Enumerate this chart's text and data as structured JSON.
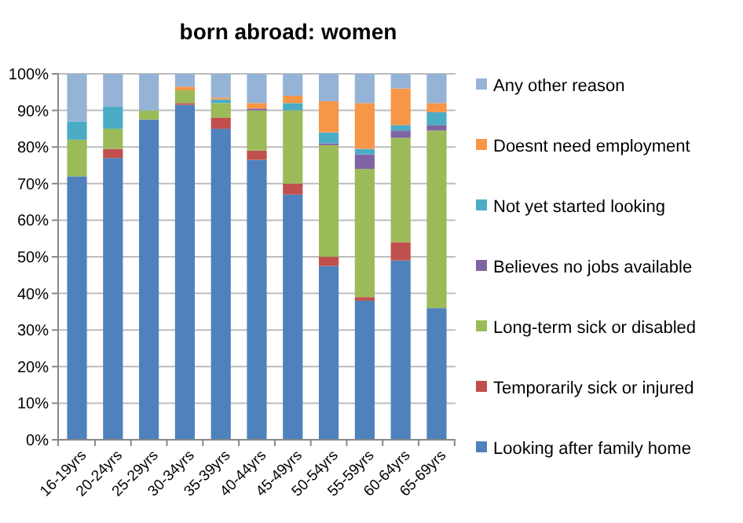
{
  "chart_data": {
    "type": "bar",
    "title": "born abroad: women",
    "stacked": true,
    "categories": [
      "16-19yrs",
      "20-24yrs",
      "25-29yrs",
      "30-34yrs",
      "35-39yrs",
      "40-44yrs",
      "45-49yrs",
      "50-54yrs",
      "55-59yrs",
      "60-64yrs",
      "65-69yrs"
    ],
    "series": [
      {
        "name": "Looking after family home",
        "color": "#4f81bd",
        "values": [
          72,
          77,
          87.5,
          91.5,
          85,
          76.5,
          67,
          47.5,
          38,
          49,
          36
        ]
      },
      {
        "name": "Temporarily sick or injured",
        "color": "#c0504d",
        "values": [
          0,
          2.5,
          0,
          0.5,
          3,
          2.5,
          3,
          2.5,
          1,
          5,
          0
        ]
      },
      {
        "name": "Long-term sick or disabled",
        "color": "#9bbb59",
        "values": [
          10,
          5.5,
          2.5,
          3.5,
          4,
          11,
          20,
          30.5,
          35,
          28.5,
          48.5
        ]
      },
      {
        "name": "Believes no jobs available",
        "color": "#8064a2",
        "values": [
          0,
          0,
          0,
          0,
          0,
          0.5,
          0,
          0.5,
          4,
          2,
          1.5
        ]
      },
      {
        "name": "Not yet started looking",
        "color": "#4bacc6",
        "values": [
          5,
          6,
          0,
          0,
          1,
          0,
          2,
          3,
          1.5,
          1.5,
          3.5
        ]
      },
      {
        "name": "Doesnt need employment",
        "color": "#f79646",
        "values": [
          0,
          0,
          0,
          1,
          0.5,
          1.5,
          2,
          8.5,
          12.5,
          10,
          2.5
        ]
      },
      {
        "name": "Any other reason",
        "color": "#95b3d7",
        "values": [
          13,
          9,
          10,
          3.5,
          6.5,
          8,
          6,
          7.5,
          8,
          4,
          8
        ]
      }
    ],
    "ylim": [
      0,
      100
    ],
    "yticks": [
      {
        "value": 0,
        "label": "0%"
      },
      {
        "value": 10,
        "label": "10%"
      },
      {
        "value": 20,
        "label": "20%"
      },
      {
        "value": 30,
        "label": "30%"
      },
      {
        "value": 40,
        "label": "40%"
      },
      {
        "value": 50,
        "label": "50%"
      },
      {
        "value": 60,
        "label": "60%"
      },
      {
        "value": 70,
        "label": "70%"
      },
      {
        "value": 80,
        "label": "80%"
      },
      {
        "value": 90,
        "label": "90%"
      },
      {
        "value": 100,
        "label": "100%"
      }
    ],
    "grid": "y",
    "legend": "right"
  }
}
